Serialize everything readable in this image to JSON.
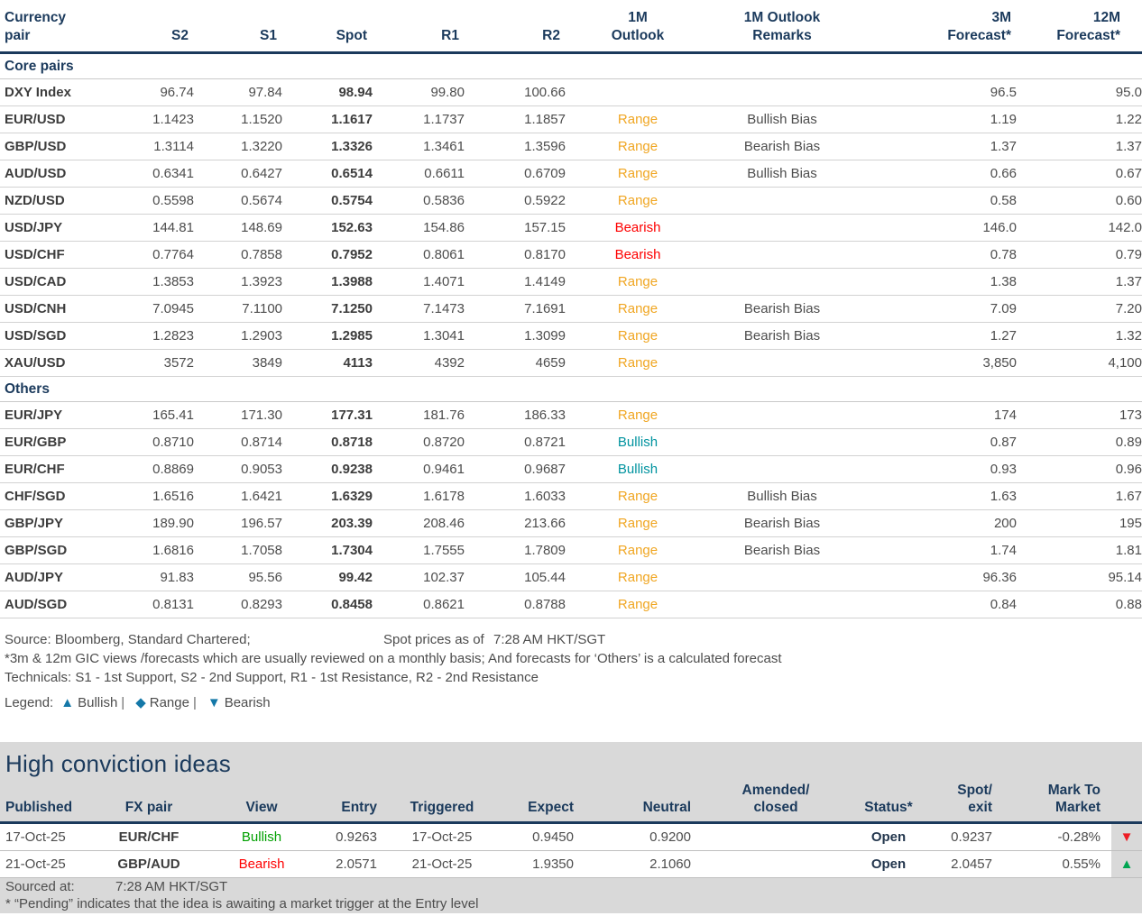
{
  "colors": {
    "navy": "#1b3a5c",
    "body_text": "#4d4d4d",
    "range_amber": "#f0a622",
    "bearish_red": "#fe0000",
    "bullish_teal": "#00939f",
    "bullish_green": "#00a000",
    "triangle_up_green": "#00a551",
    "triangle_down_red": "#ed1c24",
    "legend_blue": "#1478a8",
    "gray_band": "#d9d9d9"
  },
  "fx_table": {
    "columns": [
      {
        "key": "pair",
        "label": "Currency\npair",
        "cls": "h-pair"
      },
      {
        "key": "s2",
        "label": "S2",
        "cls": "h-num"
      },
      {
        "key": "s1",
        "label": "S1",
        "cls": "h-num"
      },
      {
        "key": "spot",
        "label": "Spot",
        "cls": "h-num"
      },
      {
        "key": "r1",
        "label": "R1",
        "cls": "h-num"
      },
      {
        "key": "r2",
        "label": "R2",
        "cls": "h-num"
      },
      {
        "key": "outlook",
        "label": "1M\nOutlook",
        "cls": "h-center"
      },
      {
        "key": "remarks",
        "label": "1M Outlook\nRemarks",
        "cls": "h-center"
      },
      {
        "key": "f3m",
        "label": "3M\nForecast*",
        "cls": "h-fc"
      },
      {
        "key": "f12m",
        "label": "12M\nForecast*",
        "cls": "h-fc12"
      }
    ],
    "sections": [
      {
        "title": "Core pairs",
        "rows": [
          {
            "pair": "DXY Index",
            "s2": "96.74",
            "s1": "97.84",
            "spot": "98.94",
            "r1": "99.80",
            "r2": "100.66",
            "outlook": "",
            "remarks": "",
            "f3m": "96.5",
            "f12m": "95.0"
          },
          {
            "pair": "EUR/USD",
            "s2": "1.1423",
            "s1": "1.1520",
            "spot": "1.1617",
            "r1": "1.1737",
            "r2": "1.1857",
            "outlook": "Range",
            "remarks": "Bullish Bias",
            "f3m": "1.19",
            "f12m": "1.22"
          },
          {
            "pair": "GBP/USD",
            "s2": "1.3114",
            "s1": "1.3220",
            "spot": "1.3326",
            "r1": "1.3461",
            "r2": "1.3596",
            "outlook": "Range",
            "remarks": "Bearish Bias",
            "f3m": "1.37",
            "f12m": "1.37"
          },
          {
            "pair": "AUD/USD",
            "s2": "0.6341",
            "s1": "0.6427",
            "spot": "0.6514",
            "r1": "0.6611",
            "r2": "0.6709",
            "outlook": "Range",
            "remarks": "Bullish Bias",
            "f3m": "0.66",
            "f12m": "0.67"
          },
          {
            "pair": "NZD/USD",
            "s2": "0.5598",
            "s1": "0.5674",
            "spot": "0.5754",
            "r1": "0.5836",
            "r2": "0.5922",
            "outlook": "Range",
            "remarks": "",
            "f3m": "0.58",
            "f12m": "0.60"
          },
          {
            "pair": "USD/JPY",
            "s2": "144.81",
            "s1": "148.69",
            "spot": "152.63",
            "r1": "154.86",
            "r2": "157.15",
            "outlook": "Bearish",
            "remarks": "",
            "f3m": "146.0",
            "f12m": "142.0"
          },
          {
            "pair": "USD/CHF",
            "s2": "0.7764",
            "s1": "0.7858",
            "spot": "0.7952",
            "r1": "0.8061",
            "r2": "0.8170",
            "outlook": "Bearish",
            "remarks": "",
            "f3m": "0.78",
            "f12m": "0.79"
          },
          {
            "pair": "USD/CAD",
            "s2": "1.3853",
            "s1": "1.3923",
            "spot": "1.3988",
            "r1": "1.4071",
            "r2": "1.4149",
            "outlook": "Range",
            "remarks": "",
            "f3m": "1.38",
            "f12m": "1.37"
          },
          {
            "pair": "USD/CNH",
            "s2": "7.0945",
            "s1": "7.1100",
            "spot": "7.1250",
            "r1": "7.1473",
            "r2": "7.1691",
            "outlook": "Range",
            "remarks": "Bearish Bias",
            "f3m": "7.09",
            "f12m": "7.20"
          },
          {
            "pair": "USD/SGD",
            "s2": "1.2823",
            "s1": "1.2903",
            "spot": "1.2985",
            "r1": "1.3041",
            "r2": "1.3099",
            "outlook": "Range",
            "remarks": "Bearish Bias",
            "f3m": "1.27",
            "f12m": "1.32"
          },
          {
            "pair": "XAU/USD",
            "s2": "3572",
            "s1": "3849",
            "spot": "4113",
            "r1": "4392",
            "r2": "4659",
            "outlook": "Range",
            "remarks": "",
            "f3m": "3,850",
            "f12m": "4,100"
          }
        ]
      },
      {
        "title": "Others",
        "rows": [
          {
            "pair": "EUR/JPY",
            "s2": "165.41",
            "s1": "171.30",
            "spot": "177.31",
            "r1": "181.76",
            "r2": "186.33",
            "outlook": "Range",
            "remarks": "",
            "f3m": "174",
            "f12m": "173"
          },
          {
            "pair": "EUR/GBP",
            "s2": "0.8710",
            "s1": "0.8714",
            "spot": "0.8718",
            "r1": "0.8720",
            "r2": "0.8721",
            "outlook": "Bullish",
            "remarks": "",
            "f3m": "0.87",
            "f12m": "0.89"
          },
          {
            "pair": "EUR/CHF",
            "s2": "0.8869",
            "s1": "0.9053",
            "spot": "0.9238",
            "r1": "0.9461",
            "r2": "0.9687",
            "outlook": "Bullish",
            "remarks": "",
            "f3m": "0.93",
            "f12m": "0.96"
          },
          {
            "pair": "CHF/SGD",
            "s2": "1.6516",
            "s1": "1.6421",
            "spot": "1.6329",
            "r1": "1.6178",
            "r2": "1.6033",
            "outlook": "Range",
            "remarks": "Bullish Bias",
            "f3m": "1.63",
            "f12m": "1.67"
          },
          {
            "pair": "GBP/JPY",
            "s2": "189.90",
            "s1": "196.57",
            "spot": "203.39",
            "r1": "208.46",
            "r2": "213.66",
            "outlook": "Range",
            "remarks": "Bearish Bias",
            "f3m": "200",
            "f12m": "195"
          },
          {
            "pair": "GBP/SGD",
            "s2": "1.6816",
            "s1": "1.7058",
            "spot": "1.7304",
            "r1": "1.7555",
            "r2": "1.7809",
            "outlook": "Range",
            "remarks": "Bearish Bias",
            "f3m": "1.74",
            "f12m": "1.81"
          },
          {
            "pair": "AUD/JPY",
            "s2": "91.83",
            "s1": "95.56",
            "spot": "99.42",
            "r1": "102.37",
            "r2": "105.44",
            "outlook": "Range",
            "remarks": "",
            "f3m": "96.36",
            "f12m": "95.14"
          },
          {
            "pair": "AUD/SGD",
            "s2": "0.8131",
            "s1": "0.8293",
            "spot": "0.8458",
            "r1": "0.8621",
            "r2": "0.8788",
            "outlook": "Range",
            "remarks": "",
            "f3m": "0.84",
            "f12m": "0.88"
          }
        ]
      }
    ]
  },
  "footnotes": {
    "source": "Source: Bloomberg, Standard Chartered;",
    "spot_as_of_label": "Spot prices as of",
    "spot_as_of_time": "7:28 AM HKT/SGT",
    "line2": "*3m & 12m GIC views /forecasts which are usually reviewed on a monthly basis; And forecasts for ‘Others’ is a calculated forecast",
    "line3": "Technicals: S1 - 1st Support, S2 - 2nd Support, R1 - 1st Resistance, R2 - 2nd Resistance",
    "legend_label": "Legend:",
    "legend": [
      {
        "symbol": "▲",
        "label": "Bullish"
      },
      {
        "symbol": "◆",
        "label": "Range"
      },
      {
        "symbol": "▼",
        "label": "Bearish"
      }
    ]
  },
  "ideas": {
    "title": "High conviction ideas",
    "columns": [
      {
        "key": "published",
        "label": "Published",
        "cls": "c-published"
      },
      {
        "key": "fx_pair",
        "label": "FX pair",
        "cls": "c-fxpair"
      },
      {
        "key": "view",
        "label": "View",
        "cls": "c-view"
      },
      {
        "key": "entry",
        "label": "Entry",
        "cls": "c-entry"
      },
      {
        "key": "triggered",
        "label": "Triggered",
        "cls": "c-triggered"
      },
      {
        "key": "expect",
        "label": "Expect",
        "cls": "c-expect"
      },
      {
        "key": "neutral",
        "label": "Neutral",
        "cls": "c-neutral"
      },
      {
        "key": "amended",
        "label": "Amended/\nclosed",
        "cls": "c-amended"
      },
      {
        "key": "status",
        "label": "Status*",
        "cls": "c-status"
      },
      {
        "key": "spot_exit",
        "label": "Spot/\nexit",
        "cls": "c-spotexit"
      },
      {
        "key": "mtm",
        "label": "Mark To\nMarket",
        "cls": "c-mtm"
      },
      {
        "key": "dir",
        "label": "",
        "cls": "c-dir"
      }
    ],
    "rows": [
      {
        "published": "17-Oct-25",
        "fx_pair": "EUR/CHF",
        "view": "Bullish",
        "entry": "0.9263",
        "triggered": "17-Oct-25",
        "expect": "0.9450",
        "neutral": "0.9200",
        "amended": "",
        "status": "Open",
        "spot_exit": "0.9237",
        "mtm": "-0.28%",
        "dir": "down",
        "dir_symbol": "▼"
      },
      {
        "published": "21-Oct-25",
        "fx_pair": "GBP/AUD",
        "view": "Bearish",
        "entry": "2.0571",
        "triggered": "21-Oct-25",
        "expect": "1.9350",
        "neutral": "2.1060",
        "amended": "",
        "status": "Open",
        "spot_exit": "2.0457",
        "mtm": "0.55%",
        "dir": "up",
        "dir_symbol": "▲"
      }
    ],
    "sourced_label": "Sourced at:",
    "sourced_time": "7:28 AM HKT/SGT",
    "pending_note": "* “Pending” indicates that the idea is awaiting a market trigger at the Entry level"
  }
}
